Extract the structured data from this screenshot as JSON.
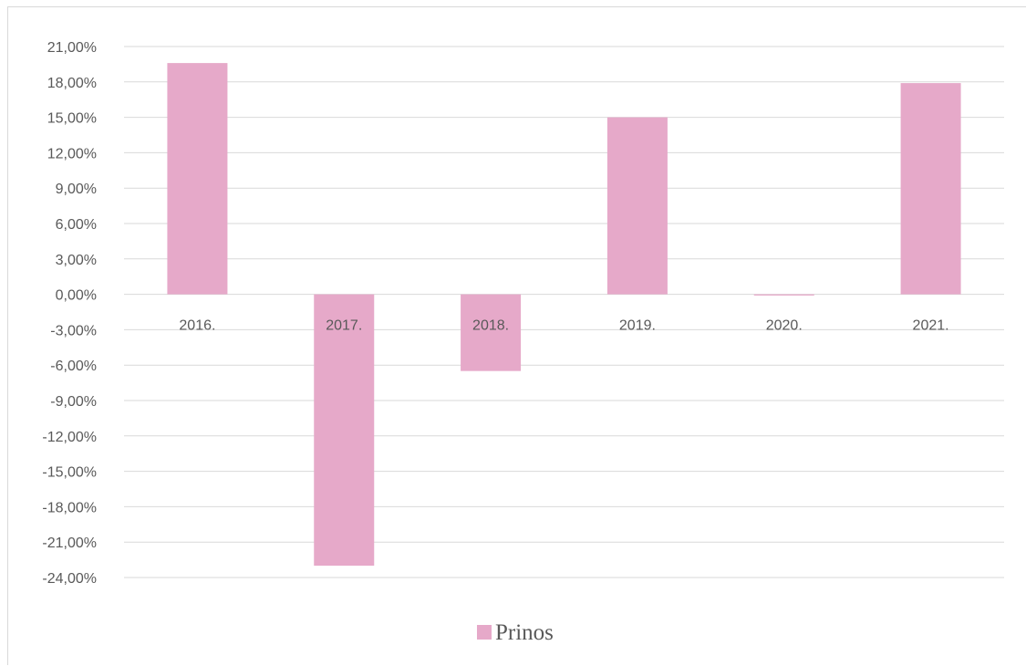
{
  "chart_data": {
    "type": "bar",
    "categories": [
      "2016.",
      "2017.",
      "2018.",
      "2019.",
      "2020.",
      "2021."
    ],
    "series": [
      {
        "name": "Prinos",
        "values": [
          19.6,
          -23.0,
          -6.5,
          15.0,
          -0.1,
          17.9
        ]
      }
    ],
    "ylim": [
      -24,
      21
    ],
    "y_ticks": [
      21,
      18,
      15,
      12,
      9,
      6,
      3,
      0,
      -3,
      -6,
      -9,
      -12,
      -15,
      -18,
      -21,
      -24
    ],
    "y_tick_labels": [
      "21,00%",
      "18,00%",
      "15,00%",
      "12,00%",
      "9,00%",
      "6,00%",
      "3,00%",
      "0,00%",
      "-3,00%",
      "-6,00%",
      "-9,00%",
      "-12,00%",
      "-15,00%",
      "-18,00%",
      "-21,00%",
      "-24,00%"
    ],
    "grid": true,
    "legend_position": "bottom",
    "colors": {
      "bar": "#e6a9c9",
      "grid": "#d9d9d9",
      "text": "#595959"
    }
  }
}
